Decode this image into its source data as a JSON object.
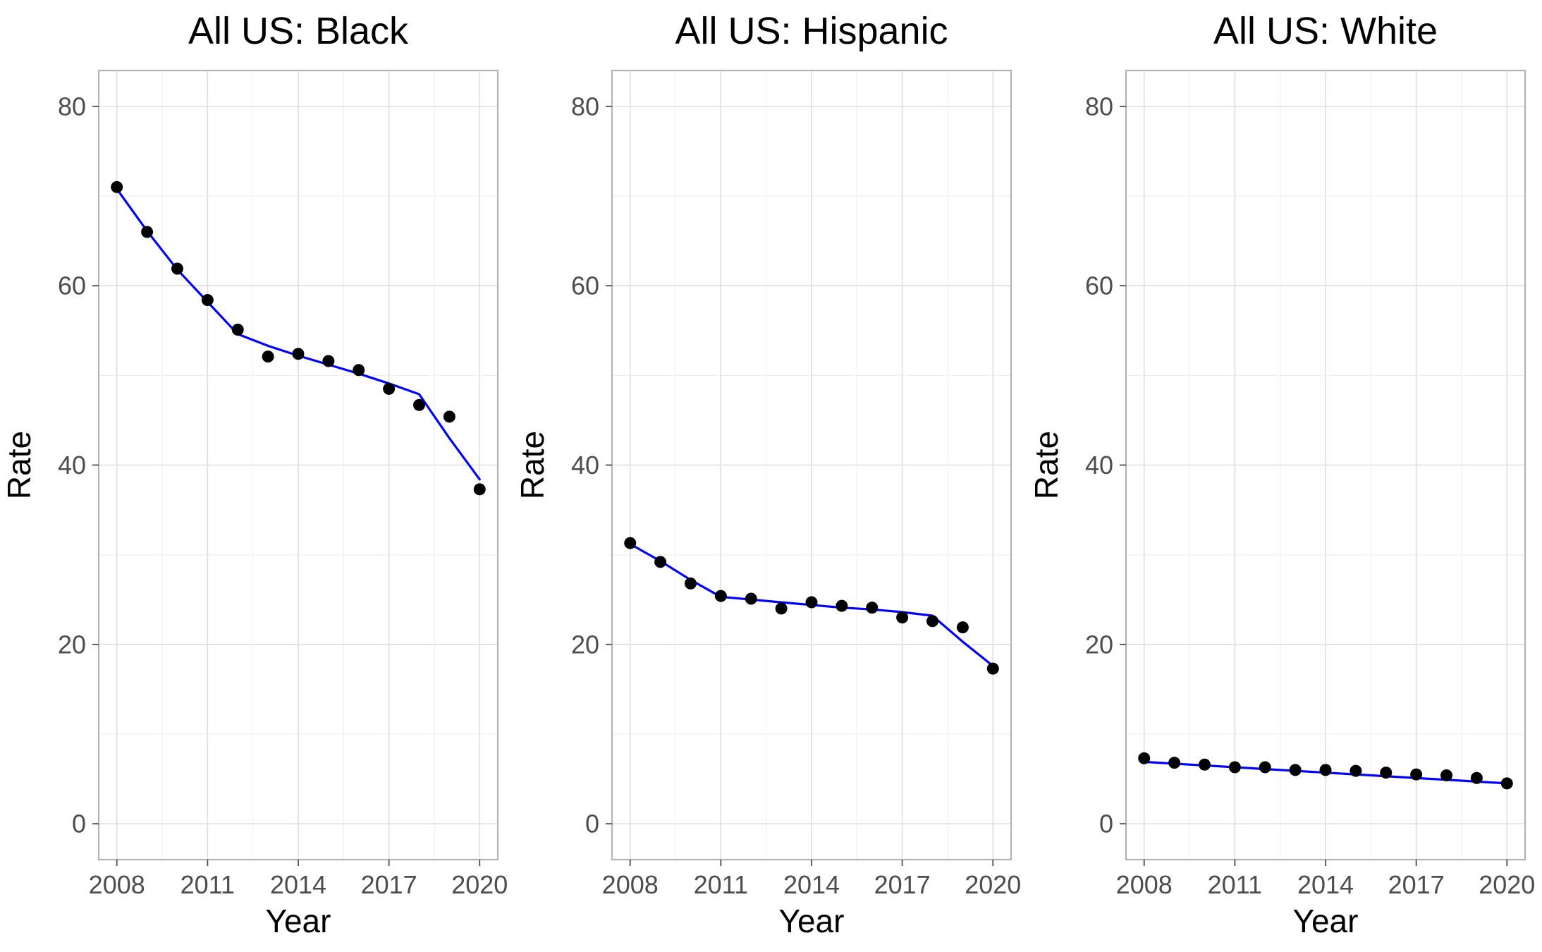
{
  "colors": {
    "points": "#000000",
    "fit_line": "#0000ff",
    "grid": "#dedede",
    "border": "#b3b3b3"
  },
  "chart_data": [
    {
      "type": "scatter",
      "title": "All US: Black",
      "xlabel": "Year",
      "ylabel": "Rate",
      "xlim": [
        2007.4,
        2020.6
      ],
      "ylim": [
        -4,
        84
      ],
      "x_ticks": [
        2008,
        2011,
        2014,
        2017,
        2020
      ],
      "y_ticks": [
        0,
        20,
        40,
        60,
        80
      ],
      "grid": true,
      "legend": "none",
      "points": {
        "x": [
          2008,
          2009,
          2010,
          2011,
          2012,
          2013,
          2014,
          2015,
          2016,
          2017,
          2018,
          2019,
          2020
        ],
        "y": [
          71.0,
          66.0,
          61.9,
          58.4,
          55.1,
          52.1,
          52.4,
          51.6,
          50.6,
          48.5,
          46.7,
          45.4,
          37.3
        ]
      },
      "fit_line": {
        "x": [
          2008,
          2009,
          2010,
          2011,
          2012,
          2013,
          2014,
          2015,
          2016,
          2017,
          2018,
          2019,
          2020
        ],
        "y": [
          70.8,
          66.1,
          61.8,
          58.2,
          54.6,
          53.3,
          52.2,
          51.2,
          50.2,
          49.1,
          47.9,
          43.0,
          38.4
        ]
      }
    },
    {
      "type": "scatter",
      "title": "All US: Hispanic",
      "xlabel": "Year",
      "ylabel": "Rate",
      "xlim": [
        2007.4,
        2020.6
      ],
      "ylim": [
        -4,
        84
      ],
      "x_ticks": [
        2008,
        2011,
        2014,
        2017,
        2020
      ],
      "y_ticks": [
        0,
        20,
        40,
        60,
        80
      ],
      "grid": true,
      "legend": "none",
      "points": {
        "x": [
          2008,
          2009,
          2010,
          2011,
          2012,
          2013,
          2014,
          2015,
          2016,
          2017,
          2018,
          2019,
          2020
        ],
        "y": [
          31.3,
          29.2,
          26.8,
          25.4,
          25.1,
          24.0,
          24.7,
          24.3,
          24.1,
          23.0,
          22.6,
          21.9,
          17.3
        ]
      },
      "fit_line": {
        "x": [
          2008,
          2009,
          2010,
          2011,
          2012,
          2013,
          2014,
          2015,
          2016,
          2017,
          2018,
          2019,
          2020
        ],
        "y": [
          31.2,
          29.3,
          27.2,
          25.3,
          25.0,
          24.7,
          24.4,
          24.1,
          23.9,
          23.6,
          23.2,
          20.3,
          17.6
        ]
      }
    },
    {
      "type": "scatter",
      "title": "All US: White",
      "xlabel": "Year",
      "ylabel": "Rate",
      "xlim": [
        2007.4,
        2020.6
      ],
      "ylim": [
        -4,
        84
      ],
      "x_ticks": [
        2008,
        2011,
        2014,
        2017,
        2020
      ],
      "y_ticks": [
        0,
        20,
        40,
        60,
        80
      ],
      "grid": true,
      "legend": "none",
      "points": {
        "x": [
          2008,
          2009,
          2010,
          2011,
          2012,
          2013,
          2014,
          2015,
          2016,
          2017,
          2018,
          2019,
          2020
        ],
        "y": [
          7.3,
          6.8,
          6.6,
          6.3,
          6.3,
          6.0,
          6.0,
          5.9,
          5.7,
          5.5,
          5.4,
          5.1,
          4.5
        ]
      },
      "fit_line": {
        "x": [
          2008,
          2020
        ],
        "y": [
          6.9,
          4.5
        ]
      }
    }
  ]
}
